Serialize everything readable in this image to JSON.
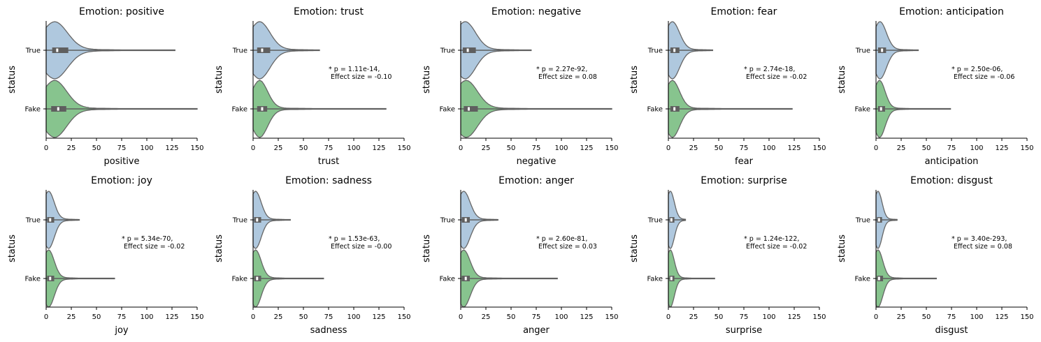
{
  "chart_data": [
    {
      "type": "violin",
      "title": "Emotion: positive",
      "xlabel": "positive",
      "ylabel": "status",
      "xlim": [
        0,
        150
      ],
      "xticks": [
        0,
        25,
        50,
        75,
        100,
        125,
        150
      ],
      "categories": [
        "True",
        "Fake"
      ],
      "annotation": null,
      "series": [
        {
          "category": "True",
          "min": 0,
          "q1": 6,
          "median": 11,
          "q3": 22,
          "max": 128
        },
        {
          "category": "Fake",
          "min": 0,
          "q1": 5,
          "median": 12,
          "q3": 20,
          "max": 150
        }
      ]
    },
    {
      "type": "violin",
      "title": "Emotion: trust",
      "xlabel": "trust",
      "ylabel": "status",
      "xlim": [
        0,
        150
      ],
      "xticks": [
        0,
        25,
        50,
        75,
        100,
        125,
        150
      ],
      "categories": [
        "True",
        "Fake"
      ],
      "annotation": [
        "* p = 1.11e-14,",
        " Effect size = -0.10"
      ],
      "series": [
        {
          "category": "True",
          "min": 0,
          "q1": 4,
          "median": 9,
          "q3": 17,
          "max": 66
        },
        {
          "category": "Fake",
          "min": 0,
          "q1": 4,
          "median": 9,
          "q3": 14,
          "max": 132
        }
      ]
    },
    {
      "type": "violin",
      "title": "Emotion: negative",
      "xlabel": "negative",
      "ylabel": "status",
      "xlim": [
        0,
        150
      ],
      "xticks": [
        0,
        25,
        50,
        75,
        100,
        125,
        150
      ],
      "categories": [
        "True",
        "Fake"
      ],
      "annotation": [
        "* p = 2.27e-92,",
        " Effect size = 0.08"
      ],
      "series": [
        {
          "category": "True",
          "min": 0,
          "q1": 2,
          "median": 7,
          "q3": 15,
          "max": 70
        },
        {
          "category": "Fake",
          "min": 0,
          "q1": 3,
          "median": 8,
          "q3": 17,
          "max": 150
        }
      ]
    },
    {
      "type": "violin",
      "title": "Emotion: fear",
      "xlabel": "fear",
      "ylabel": "status",
      "xlim": [
        0,
        150
      ],
      "xticks": [
        0,
        25,
        50,
        75,
        100,
        125,
        150
      ],
      "categories": [
        "True",
        "Fake"
      ],
      "annotation": [
        "* p = 2.74e-18,",
        " Effect size = -0.02"
      ],
      "series": [
        {
          "category": "True",
          "min": 0,
          "q1": 2,
          "median": 6,
          "q3": 11,
          "max": 44
        },
        {
          "category": "Fake",
          "min": 0,
          "q1": 2,
          "median": 6,
          "q3": 11,
          "max": 123
        }
      ]
    },
    {
      "type": "violin",
      "title": "Emotion: anticipation",
      "xlabel": "anticipation",
      "ylabel": "status",
      "xlim": [
        0,
        150
      ],
      "xticks": [
        0,
        25,
        50,
        75,
        100,
        125,
        150
      ],
      "categories": [
        "True",
        "Fake"
      ],
      "annotation": [
        "* p = 2.50e-06,",
        " Effect size = -0.06"
      ],
      "series": [
        {
          "category": "True",
          "min": 0,
          "q1": 2,
          "median": 6,
          "q3": 10,
          "max": 42
        },
        {
          "category": "Fake",
          "min": 0,
          "q1": 2,
          "median": 5,
          "q3": 9,
          "max": 74
        }
      ]
    },
    {
      "type": "violin",
      "title": "Emotion: joy",
      "xlabel": "joy",
      "ylabel": "status",
      "xlim": [
        0,
        150
      ],
      "xticks": [
        0,
        25,
        50,
        75,
        100,
        125,
        150
      ],
      "categories": [
        "True",
        "Fake"
      ],
      "annotation": [
        "* p = 5.34e-70,",
        " Effect size = -0.02"
      ],
      "series": [
        {
          "category": "True",
          "min": 0,
          "q1": 1,
          "median": 4,
          "q3": 8,
          "max": 33
        },
        {
          "category": "Fake",
          "min": 0,
          "q1": 1,
          "median": 4,
          "q3": 8,
          "max": 68
        }
      ]
    },
    {
      "type": "violin",
      "title": "Emotion: sadness",
      "xlabel": "sadness",
      "ylabel": "status",
      "xlim": [
        0,
        150
      ],
      "xticks": [
        0,
        25,
        50,
        75,
        100,
        125,
        150
      ],
      "categories": [
        "True",
        "Fake"
      ],
      "annotation": [
        "* p = 1.53e-63,",
        " Effect size = -0.00"
      ],
      "series": [
        {
          "category": "True",
          "min": 0,
          "q1": 1,
          "median": 4,
          "q3": 8,
          "max": 37
        },
        {
          "category": "Fake",
          "min": 0,
          "q1": 1,
          "median": 4,
          "q3": 8,
          "max": 70
        }
      ]
    },
    {
      "type": "violin",
      "title": "Emotion: anger",
      "xlabel": "anger",
      "ylabel": "status",
      "xlim": [
        0,
        150
      ],
      "xticks": [
        0,
        25,
        50,
        75,
        100,
        125,
        150
      ],
      "categories": [
        "True",
        "Fake"
      ],
      "annotation": [
        "* p = 2.60e-81,",
        " Effect size = 0.03"
      ],
      "series": [
        {
          "category": "True",
          "min": 0,
          "q1": 1,
          "median": 5,
          "q3": 9,
          "max": 37
        },
        {
          "category": "Fake",
          "min": 0,
          "q1": 1,
          "median": 5,
          "q3": 9,
          "max": 96
        }
      ]
    },
    {
      "type": "violin",
      "title": "Emotion: surprise",
      "xlabel": "surprise",
      "ylabel": "status",
      "xlim": [
        0,
        150
      ],
      "xticks": [
        0,
        25,
        50,
        75,
        100,
        125,
        150
      ],
      "categories": [
        "True",
        "Fake"
      ],
      "annotation": [
        "* p = 1.24e-122,",
        " Effect size = -0.02"
      ],
      "series": [
        {
          "category": "True",
          "min": 0,
          "q1": 1,
          "median": 3,
          "q3": 6,
          "max": 17
        },
        {
          "category": "Fake",
          "min": 0,
          "q1": 1,
          "median": 3,
          "q3": 6,
          "max": 46
        }
      ]
    },
    {
      "type": "violin",
      "title": "Emotion: disgust",
      "xlabel": "disgust",
      "ylabel": "status",
      "xlim": [
        0,
        150
      ],
      "xticks": [
        0,
        25,
        50,
        75,
        100,
        125,
        150
      ],
      "categories": [
        "True",
        "Fake"
      ],
      "annotation": [
        "* p = 3.40e-293,",
        " Effect size = 0.08"
      ],
      "series": [
        {
          "category": "True",
          "min": 0,
          "q1": 1,
          "median": 3,
          "q3": 6,
          "max": 21
        },
        {
          "category": "Fake",
          "min": 0,
          "q1": 1,
          "median": 3,
          "q3": 7,
          "max": 60
        }
      ]
    }
  ],
  "colors": {
    "true_violin": "#afc8de",
    "fake_violin": "#87c48e",
    "violin_edge": "#666666",
    "box": "#5f5f5f",
    "median": "#ffffff"
  }
}
